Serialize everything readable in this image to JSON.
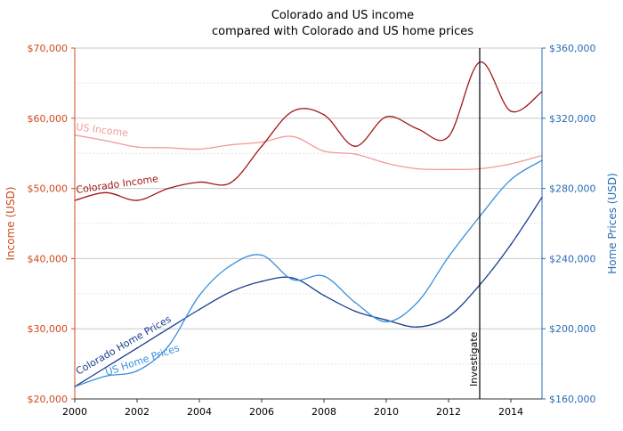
{
  "chart_data": {
    "type": "line",
    "title": "Colorado and US income",
    "subtitle": "compared with Colorado and US home prices",
    "x": [
      2000,
      2001,
      2002,
      2003,
      2004,
      2005,
      2006,
      2007,
      2008,
      2009,
      2010,
      2011,
      2012,
      2013,
      2014,
      2015
    ],
    "x_ticks": [
      "2000",
      "2002",
      "2004",
      "2006",
      "2008",
      "2010",
      "2012",
      "2014"
    ],
    "xlim": [
      2000,
      2015
    ],
    "left_axis": {
      "label": "Income (USD)",
      "ylim": [
        20000,
        70000
      ],
      "ticks": [
        "$20,000",
        "$30,000",
        "$40,000",
        "$50,000",
        "$60,000",
        "$70,000"
      ],
      "color": "#d04a1e"
    },
    "right_axis": {
      "label": "Home Prices (USD)",
      "ylim": [
        160000,
        360000
      ],
      "ticks": [
        "$160,000",
        "$200,000",
        "$240,000",
        "$280,000",
        "$320,000",
        "$360,000"
      ],
      "color": "#2a6db5"
    },
    "series": [
      {
        "name": "US Income",
        "axis": "left",
        "color": "#f29a9a",
        "values": [
          57600,
          56800,
          55900,
          55800,
          55600,
          56200,
          56600,
          57400,
          55300,
          54900,
          53600,
          52800,
          52700,
          52800,
          53500,
          54700
        ]
      },
      {
        "name": "Colorado Income",
        "axis": "left",
        "color": "#a01818",
        "values": [
          48300,
          49400,
          48300,
          50000,
          50900,
          50800,
          56000,
          61000,
          60500,
          56000,
          60200,
          58500,
          57400,
          68000,
          61000,
          63800
        ]
      },
      {
        "name": "Colorado Home Prices",
        "axis": "right",
        "color": "#1a3f8f",
        "values": [
          167000,
          178000,
          189000,
          200000,
          211000,
          221000,
          227000,
          229000,
          219000,
          210000,
          205000,
          201000,
          207000,
          225000,
          248000,
          275000
        ]
      },
      {
        "name": "US Home Prices",
        "axis": "right",
        "color": "#3a8fdc",
        "values": [
          167000,
          173000,
          176000,
          190000,
          219000,
          236000,
          242000,
          228000,
          230000,
          215000,
          204000,
          215000,
          241000,
          264000,
          285000,
          296000
        ]
      }
    ],
    "annotation": {
      "x": 2013,
      "label": "Investigate",
      "color": "#000000"
    },
    "grid": true
  }
}
